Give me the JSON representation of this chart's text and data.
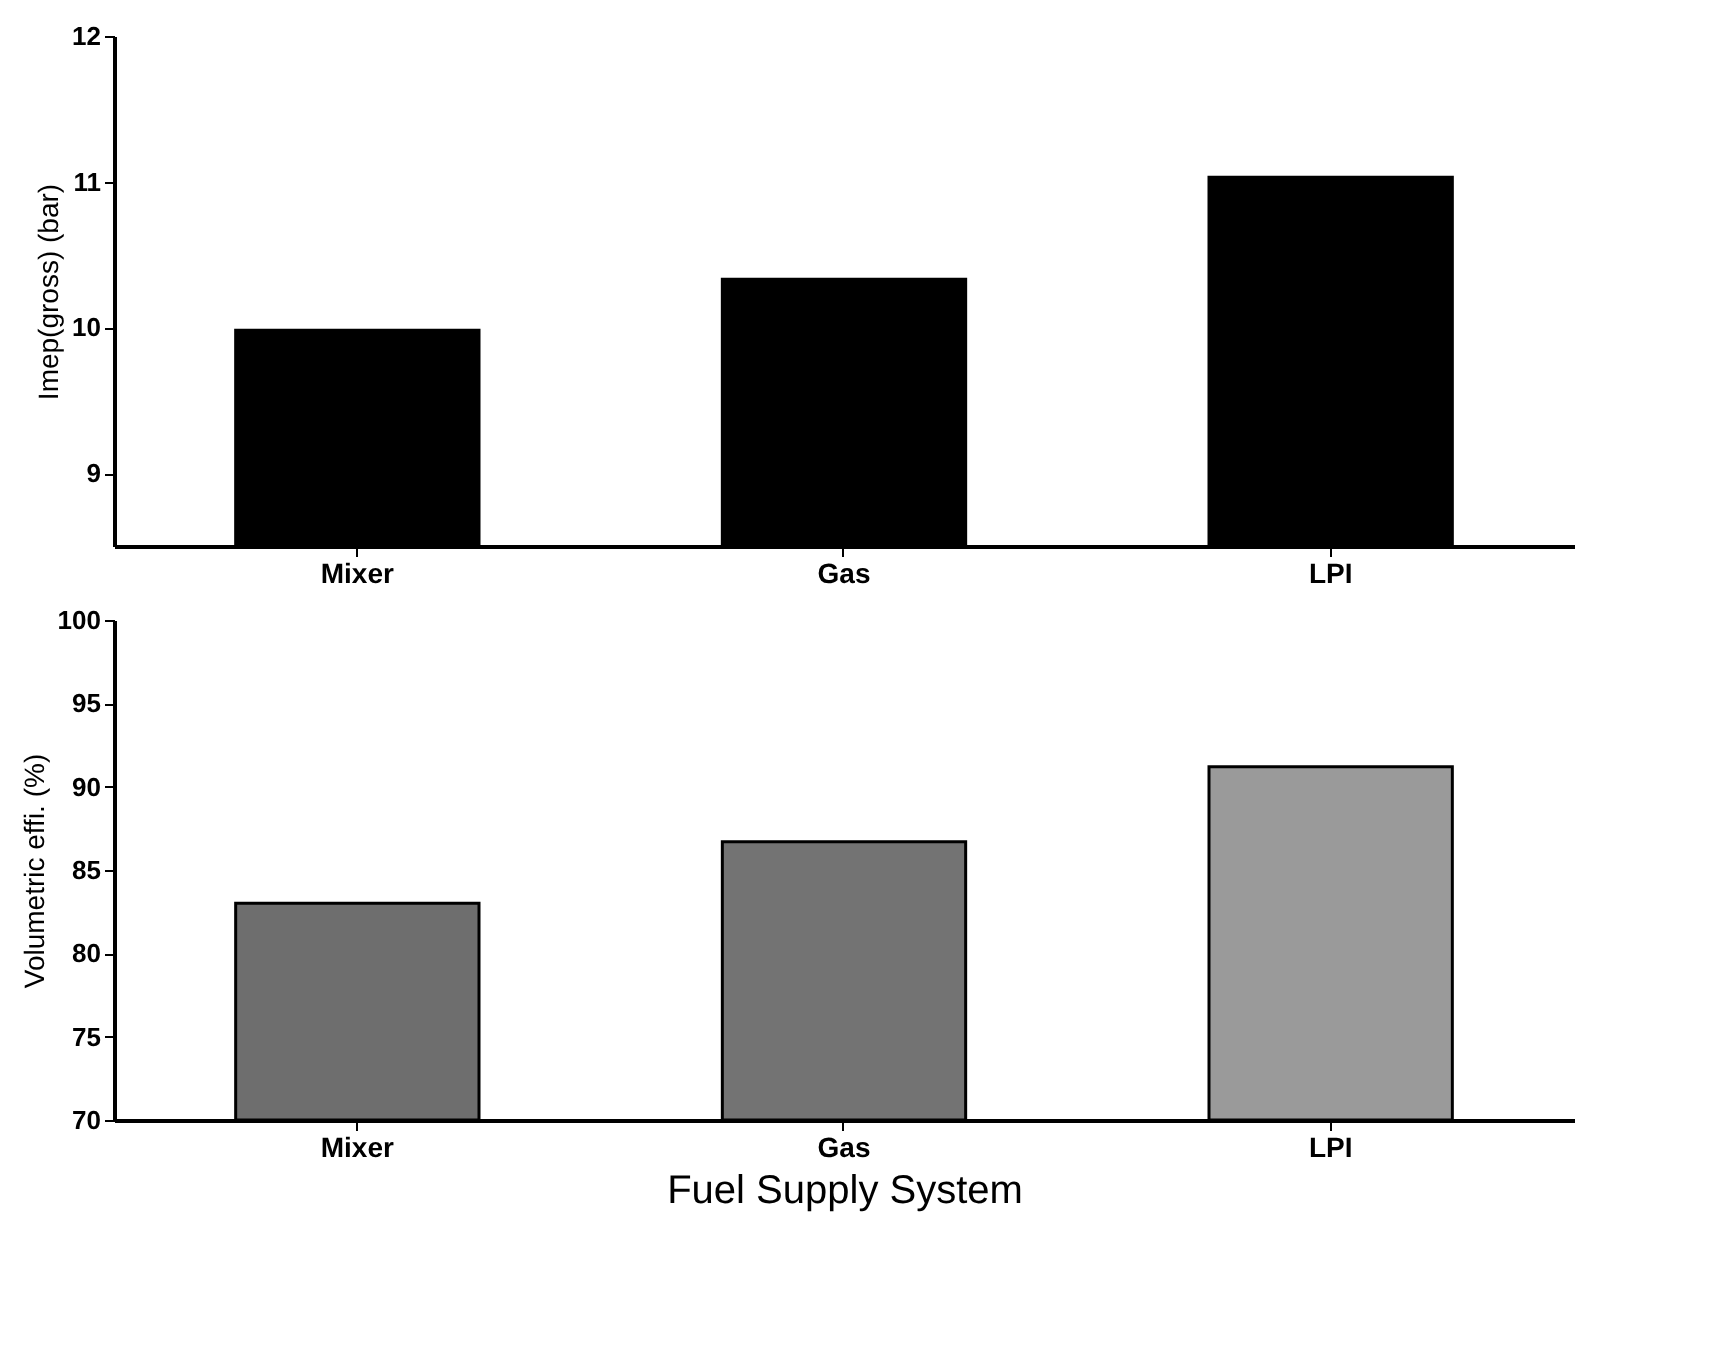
{
  "chart_data": [
    {
      "type": "bar",
      "categories": [
        "Mixer",
        "Gas",
        "LPI"
      ],
      "values": [
        9.98,
        10.33,
        11.03
      ],
      "color": "#000000",
      "ylabel": "Imep(gross) (bar)",
      "ylim": [
        8.5,
        12
      ],
      "yticks": [
        9,
        10,
        11,
        12
      ],
      "grid": false
    },
    {
      "type": "bar",
      "categories": [
        "Mixer",
        "Gas",
        "LPI"
      ],
      "values": [
        83.0,
        86.7,
        91.2
      ],
      "colors": [
        "#6e6e6e",
        "#737373",
        "#9a9a9a"
      ],
      "ylabel": "Volumetric effi. (%)",
      "xlabel": "Fuel Supply System",
      "ylim": [
        70,
        100
      ],
      "yticks": [
        70,
        75,
        80,
        85,
        90,
        95,
        100
      ],
      "grid": false
    }
  ]
}
